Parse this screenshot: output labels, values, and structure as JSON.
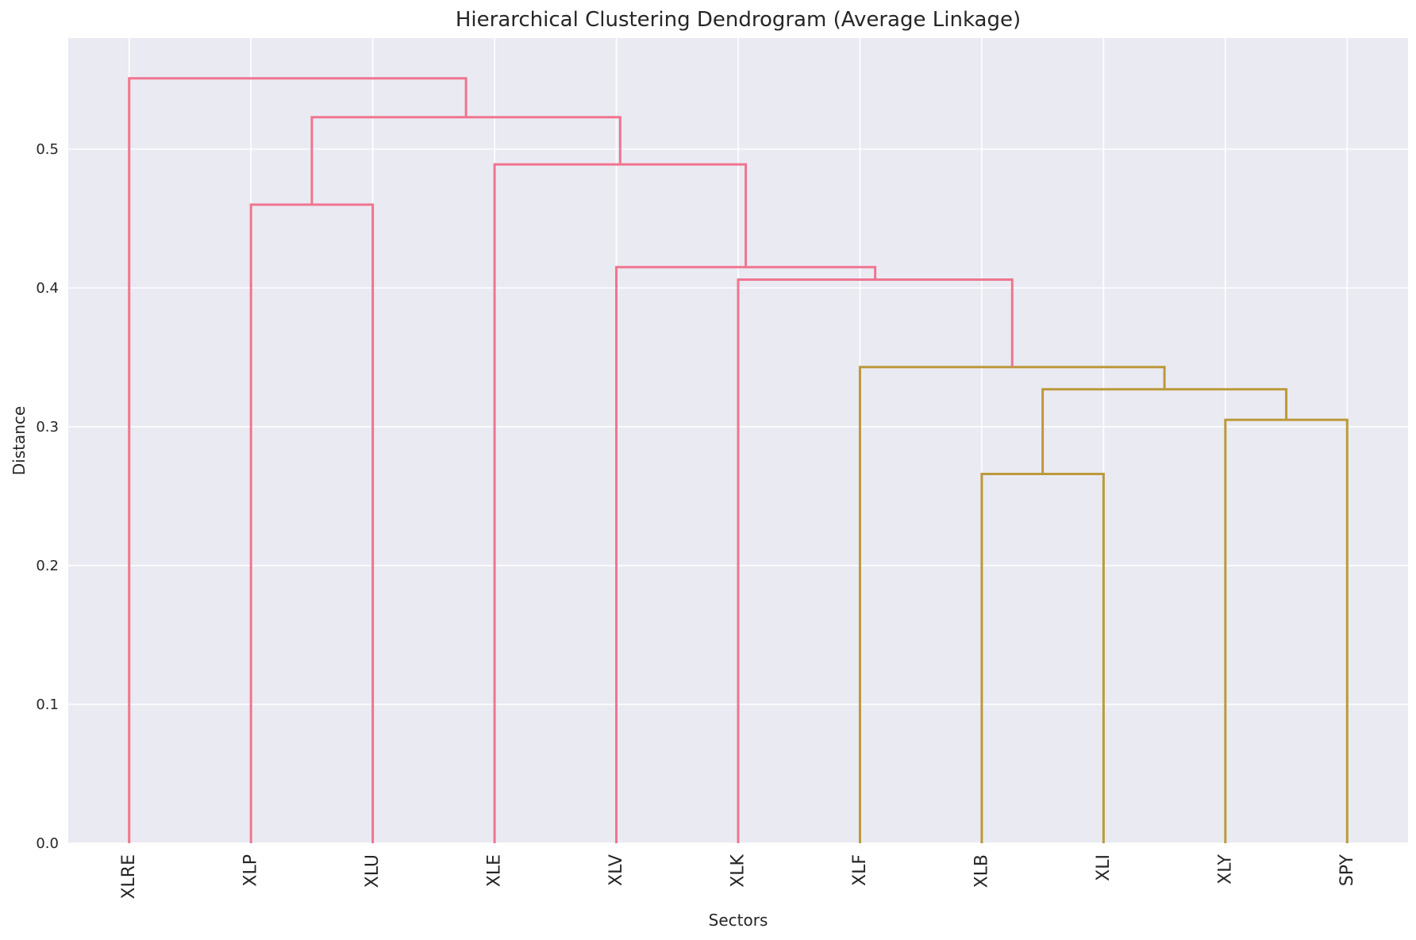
{
  "chart_data": {
    "type": "dendrogram",
    "title": "Hierarchical Clustering Dendrogram (Average Linkage)",
    "xlabel": "Sectors",
    "ylabel": "Distance",
    "ylim": [
      0,
      0.58
    ],
    "yticks": [
      0.0,
      0.1,
      0.2,
      0.3,
      0.4,
      0.5
    ],
    "ytick_labels": [
      "0.0",
      "0.1",
      "0.2",
      "0.3",
      "0.4",
      "0.5"
    ],
    "grid": true,
    "leaves": [
      "XLRE",
      "XLP",
      "XLU",
      "XLE",
      "XLV",
      "XLK",
      "XLF",
      "XLB",
      "XLI",
      "XLY",
      "SPY"
    ],
    "colors": {
      "pink": "#f07590",
      "olive": "#bb9a3a",
      "background": "#eaeaf2",
      "grid": "#ffffff"
    },
    "merges": [
      {
        "left": "XLB",
        "right": "XLI",
        "distance": 0.266,
        "color": "olive"
      },
      {
        "left": "XLY",
        "right": "SPY",
        "distance": 0.305,
        "color": "olive"
      },
      {
        "left": "XLB+XLI",
        "right": "XLY+SPY",
        "distance": 0.327,
        "color": "olive"
      },
      {
        "left": "XLF",
        "right": "XLB+XLI+XLY+SPY",
        "distance": 0.343,
        "color": "olive"
      },
      {
        "left": "XLK",
        "right": "XLF+XLB+XLI+XLY+SPY",
        "distance": 0.406,
        "color": "pink"
      },
      {
        "left": "XLV",
        "right": "XLK+XLF+XLB+XLI+XLY+SPY",
        "distance": 0.415,
        "color": "pink"
      },
      {
        "left": "XLP",
        "right": "XLU",
        "distance": 0.46,
        "color": "pink"
      },
      {
        "left": "XLE",
        "right": "XLV+XLK+XLF+XLB+XLI+XLY+SPY",
        "distance": 0.489,
        "color": "pink"
      },
      {
        "left": "XLP+XLU",
        "right": "XLE+XLV+XLK+XLF+XLB+XLI+XLY+SPY",
        "distance": 0.523,
        "color": "pink"
      },
      {
        "left": "XLRE",
        "right": "XLP+XLU+XLE+XLV+XLK+XLF+XLB+XLI+XLY+SPY",
        "distance": 0.551,
        "color": "pink"
      }
    ]
  }
}
